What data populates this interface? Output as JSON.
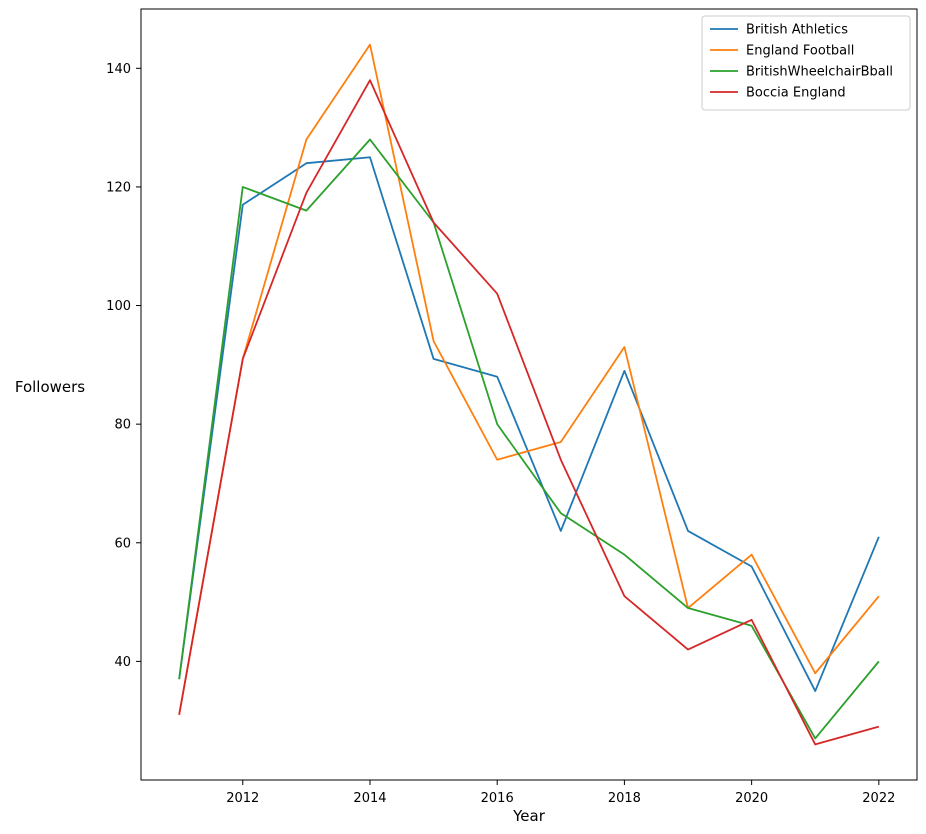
{
  "chart_data": {
    "type": "line",
    "title": "",
    "xlabel": "Year",
    "ylabel": "Followers",
    "x": [
      2011,
      2012,
      2013,
      2014,
      2015,
      2016,
      2017,
      2018,
      2019,
      2020,
      2021,
      2022
    ],
    "xlim": [
      2010.4,
      2022.6
    ],
    "ylim": [
      20,
      150
    ],
    "xticks": [
      2012,
      2014,
      2016,
      2018,
      2020,
      2022
    ],
    "yticks": [
      40,
      60,
      80,
      100,
      120,
      140
    ],
    "grid": false,
    "legend_position": "top-right",
    "series": [
      {
        "name": "British Athletics",
        "color": "#1f77b4",
        "values": [
          37,
          117,
          124,
          125,
          91,
          88,
          62,
          89,
          62,
          56,
          35,
          61
        ]
      },
      {
        "name": "England Football",
        "color": "#ff7f0e",
        "values": [
          31,
          91,
          128,
          144,
          94,
          74,
          77,
          93,
          49,
          58,
          38,
          51
        ]
      },
      {
        "name": "BritishWheelchairBball",
        "color": "#2ca02c",
        "values": [
          37,
          120,
          116,
          128,
          114,
          80,
          65,
          58,
          49,
          46,
          27,
          40
        ]
      },
      {
        "name": "Boccia England",
        "color": "#d62728",
        "values": [
          31,
          91,
          119,
          138,
          114,
          102,
          74,
          51,
          42,
          47,
          26,
          29
        ]
      }
    ]
  }
}
